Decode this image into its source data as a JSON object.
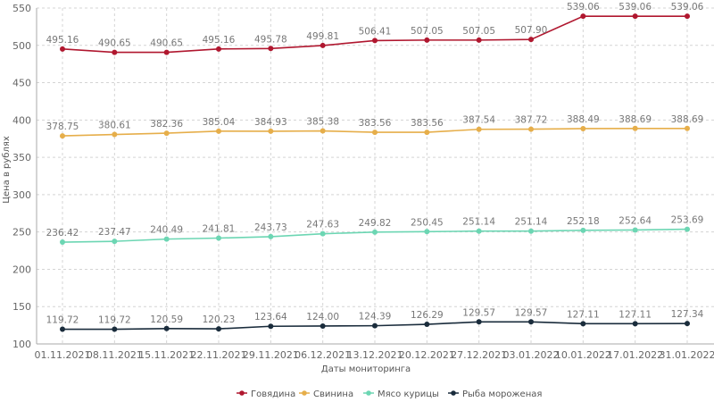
{
  "chart_data": {
    "type": "line",
    "title": "",
    "xlabel": "Даты мониторинга",
    "ylabel": "Цена в рублях",
    "ylim": [
      100,
      550
    ],
    "yticks": [
      100,
      150,
      200,
      250,
      300,
      350,
      400,
      450,
      500,
      550
    ],
    "grid": true,
    "legend_position": "bottom-center",
    "categories": [
      "01.11.2021",
      "08.11.2021",
      "15.11.2021",
      "22.11.2021",
      "29.11.2021",
      "06.12.2021",
      "13.12.2021",
      "20.12.2021",
      "27.12.2021",
      "03.01.2022",
      "10.01.2022",
      "17.01.2022",
      "31.01.2022"
    ],
    "series": [
      {
        "name": "Говядина",
        "color": "#b0172f",
        "values": [
          495.16,
          490.65,
          490.65,
          495.16,
          495.78,
          499.81,
          506.41,
          507.05,
          507.05,
          507.9,
          539.06,
          539.06,
          539.06
        ]
      },
      {
        "name": "Свинина",
        "color": "#e6ae4a",
        "values": [
          378.75,
          380.61,
          382.36,
          385.04,
          384.93,
          385.38,
          383.56,
          383.56,
          387.54,
          387.72,
          388.49,
          388.69,
          388.69
        ]
      },
      {
        "name": "Мясо курицы",
        "color": "#6cd6b3",
        "values": [
          236.42,
          237.47,
          240.49,
          241.81,
          243.73,
          247.63,
          249.82,
          250.45,
          251.14,
          251.14,
          252.18,
          252.64,
          253.69
        ]
      },
      {
        "name": "Рыба мороженая",
        "color": "#1a2c3c",
        "values": [
          119.72,
          119.72,
          120.59,
          120.23,
          123.64,
          124.0,
          124.39,
          126.29,
          129.57,
          129.57,
          127.11,
          127.11,
          127.34
        ]
      }
    ]
  }
}
